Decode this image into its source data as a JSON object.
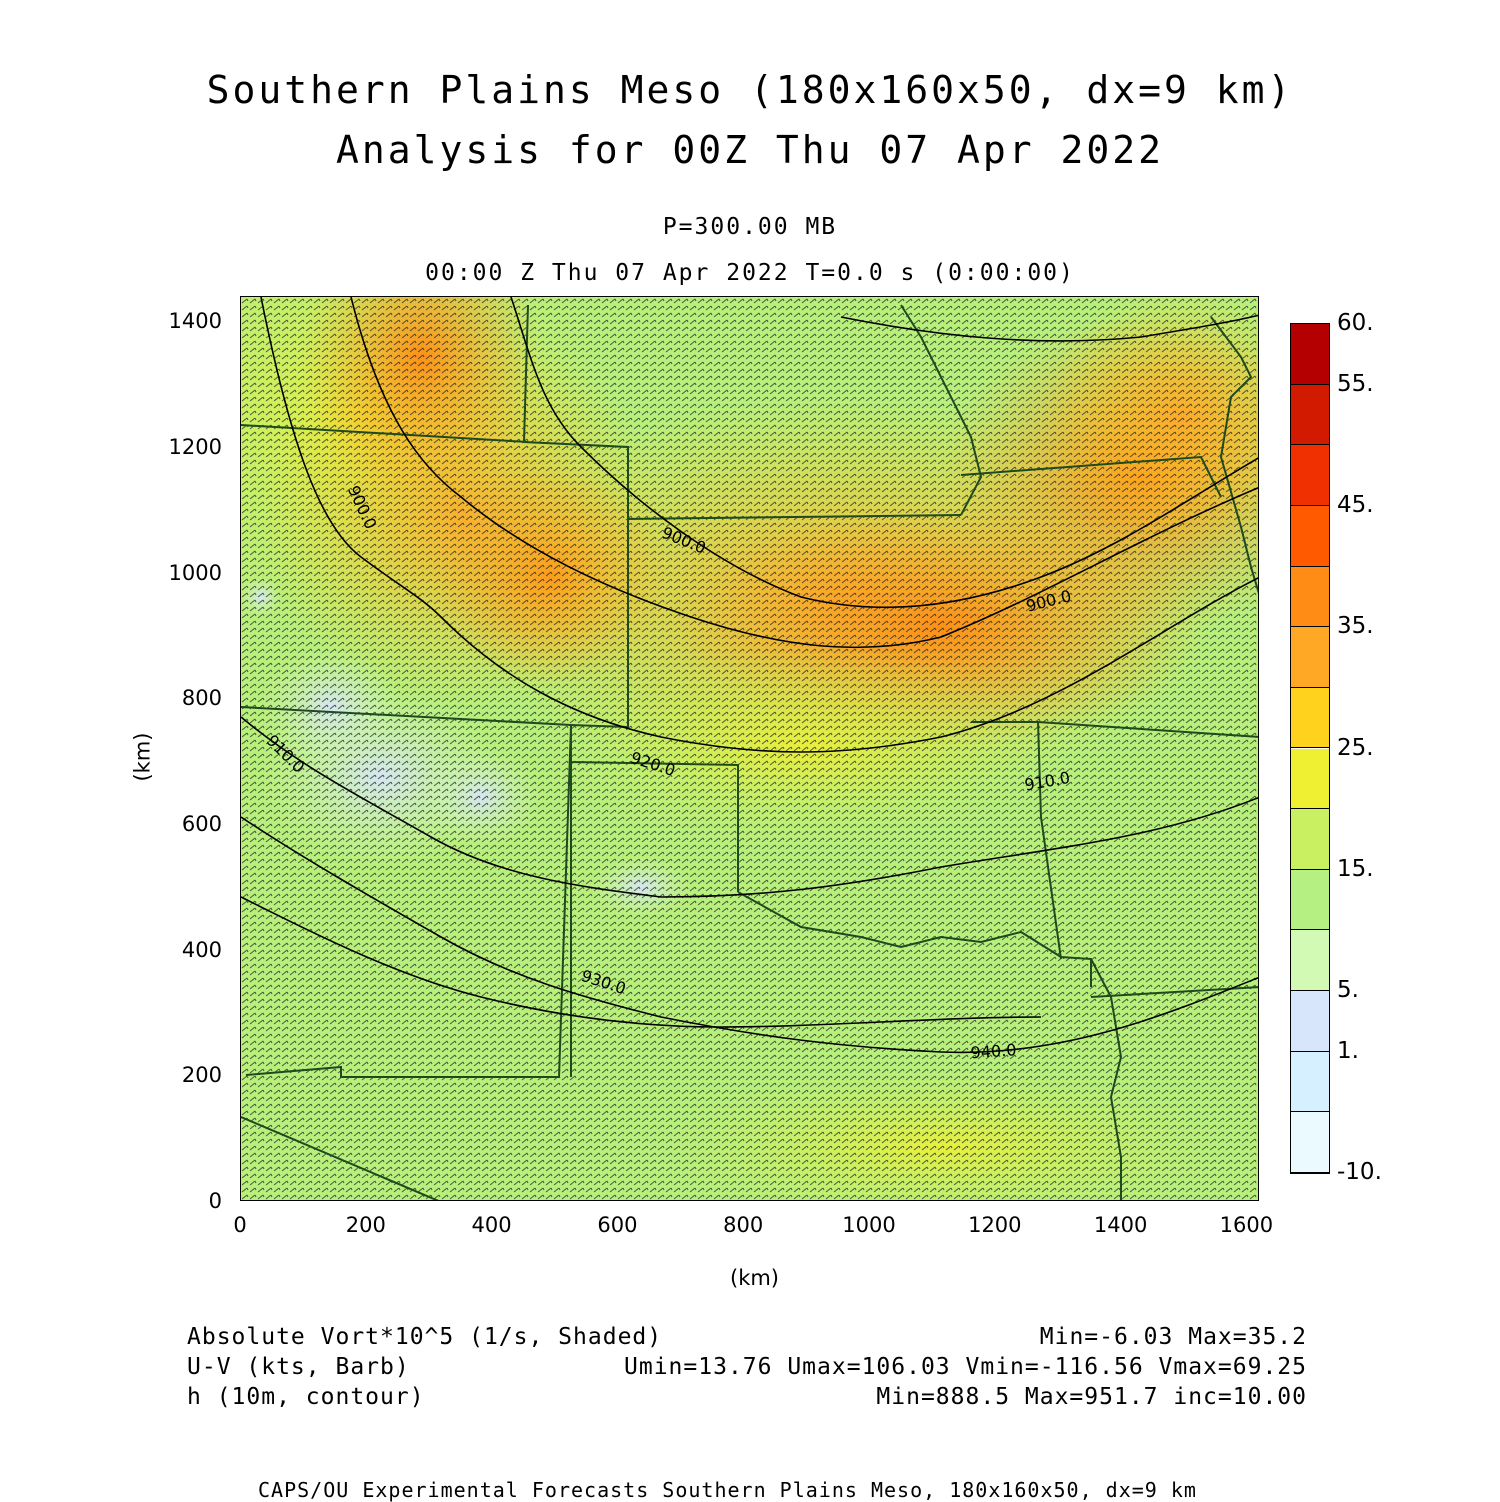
{
  "title_line1": "Southern Plains Meso (180x160x50, dx=9 km)",
  "title_line2": "Analysis for 00Z Thu 07 Apr 2022",
  "level_label": "P=300.00 MB",
  "time_label": "00:00 Z Thu 07 Apr 2022   T=0.0 s (0:00:00)",
  "axes": {
    "x_label": "(km)",
    "y_label": "(km)",
    "x_ticks": [
      "0",
      "200",
      "400",
      "600",
      "800",
      "1000",
      "1200",
      "1400",
      "1600"
    ],
    "y_ticks": [
      "0",
      "200",
      "400",
      "600",
      "800",
      "1000",
      "1200",
      "1400"
    ],
    "x_range": [
      0,
      1620
    ],
    "y_range": [
      0,
      1440
    ]
  },
  "colorbar": {
    "labels": [
      "60.",
      "55.",
      "45.",
      "35.",
      "25.",
      "15.",
      "5.",
      "1.",
      "-10."
    ],
    "colors": [
      "#b40000",
      "#d21a00",
      "#f03000",
      "#ff5a00",
      "#ff8c14",
      "#ffa826",
      "#ffd21e",
      "#f0f032",
      "#c8f060",
      "#b4f082",
      "#d2fab4",
      "#d7e6fa",
      "#d7f0ff",
      "#ebfaff"
    ]
  },
  "contours": {
    "labels": [
      "900.0",
      "900.0",
      "910.0",
      "920.0",
      "930.0",
      "940.0",
      "900.0",
      "910.0"
    ]
  },
  "legend": {
    "field1": "Absolute Vort*10^5 (1/s, Shaded)",
    "field1_stats": "Min=-6.03 Max=35.2",
    "field2": "U-V (kts, Barb)",
    "field2_stats": "Umin=13.76 Umax=106.03 Vmin=-116.56 Vmax=69.25",
    "field3": "h (10m, contour)",
    "field3_stats": "Min=888.5 Max=951.7 inc=10.00"
  },
  "footer": "CAPS/OU Experimental Forecasts  Southern Plains Meso, 180x160x50, dx=9 km"
}
